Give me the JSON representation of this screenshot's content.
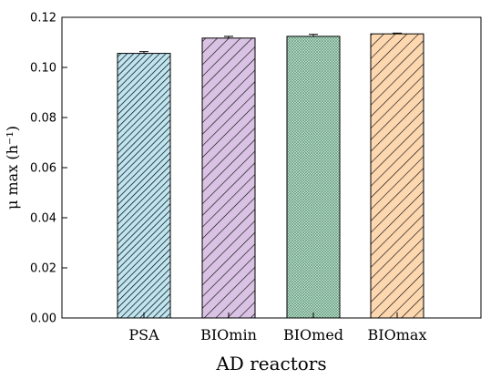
{
  "chart_data": {
    "type": "bar",
    "title": "",
    "xlabel": "AD reactors",
    "ylabel": "μ max (h⁻¹)",
    "categories": [
      "PSA",
      "BIOmin",
      "BIOmed",
      "BIOmax"
    ],
    "values": [
      0.1056,
      0.1117,
      0.1124,
      0.1134
    ],
    "errors": [
      0.0007,
      0.0007,
      0.0008,
      0.0003
    ],
    "ylim": [
      0,
      0.12
    ],
    "yticks": [
      "0.00",
      "0.02",
      "0.04",
      "0.06",
      "0.08",
      "0.10",
      "0.12"
    ],
    "grid": false,
    "legend": false,
    "bar_styles": [
      {
        "fill": "#bfe5f0",
        "hatch": "dense-diagonal"
      },
      {
        "fill": "#d9c2e3",
        "hatch": "diagonal"
      },
      {
        "fill": "#c4e6d2",
        "hatch": "crosshatch"
      },
      {
        "fill": "#fcd7b0",
        "hatch": "diagonal"
      }
    ]
  }
}
